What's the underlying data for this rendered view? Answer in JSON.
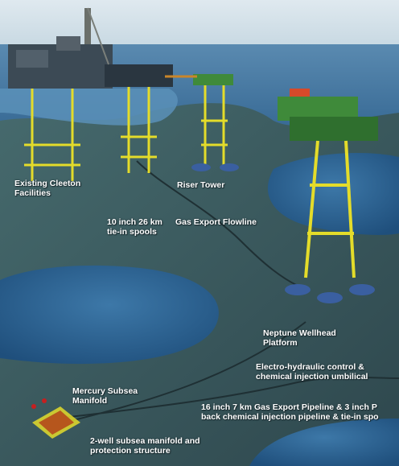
{
  "labels": {
    "cleeton": [
      "Existing Cleeton",
      "Facilities"
    ],
    "riser_tower": [
      "Riser  Tower"
    ],
    "spools": [
      "10 inch 26 km",
      "tie-in spools"
    ],
    "flowline": [
      "Gas Export Flowline"
    ],
    "neptune": [
      "Neptune Wellhead",
      "Platform"
    ],
    "umbilical": [
      "Electro-hydraulic control &",
      "chemical injection umbilical"
    ],
    "mercury": [
      "Mercury Subsea",
      "Manifold"
    ],
    "pipeline": [
      "16 inch 7 km Gas Export Pipeline & 3 inch P",
      "back chemical injection pipeline & tie-in spo"
    ],
    "manifold_structure": [
      "2-well subsea manifold and",
      "protection structure"
    ]
  },
  "colors": {
    "sea_surface": "#4c7ea5",
    "sky": "#e4eef4",
    "seabed": "#3d5a5f",
    "water_pool": "#2f6594",
    "jacket": "#e4dc2a",
    "deck_green": "#3f8a3a",
    "label": "#ffffff"
  }
}
